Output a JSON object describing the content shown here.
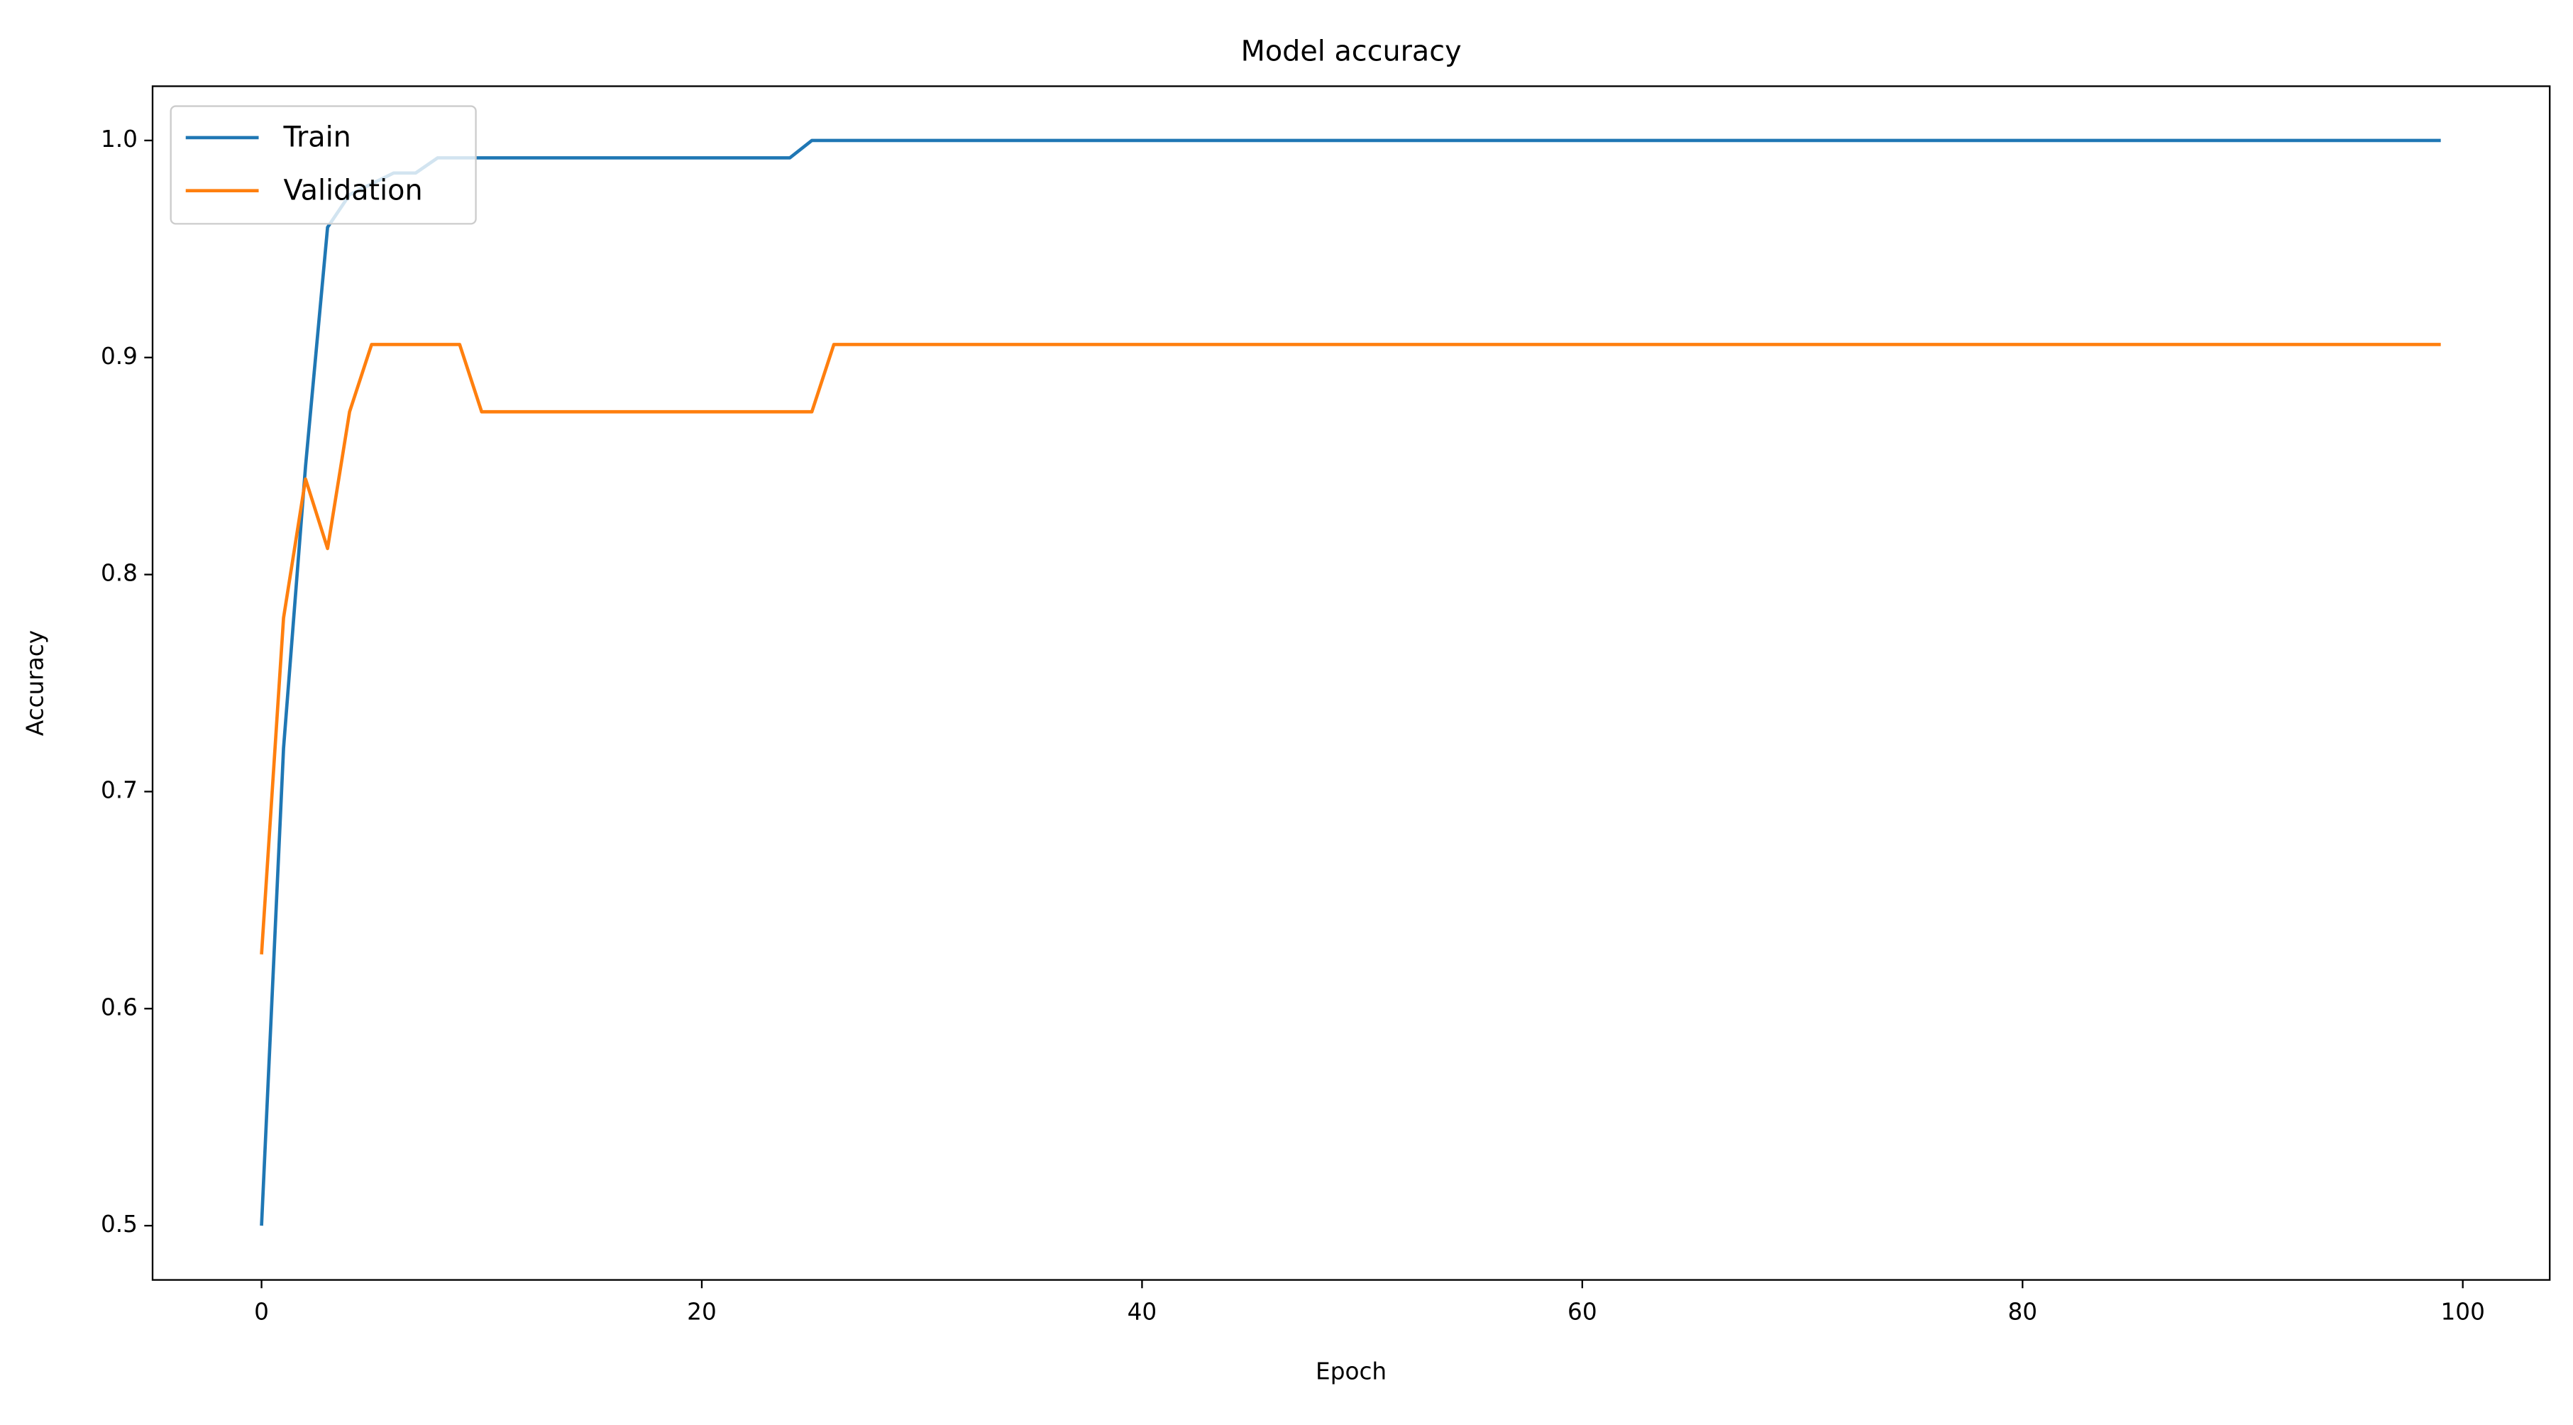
{
  "chart_data": {
    "type": "line",
    "title": "Model accuracy",
    "x_label": "Epoch",
    "y_label": "Accuracy",
    "x": [
      0,
      1,
      2,
      3,
      4,
      5,
      6,
      7,
      8,
      9,
      10,
      11,
      12,
      13,
      14,
      15,
      16,
      17,
      18,
      19,
      20,
      21,
      22,
      23,
      24,
      25,
      26,
      27,
      28,
      29,
      30,
      31,
      32,
      33,
      34,
      35,
      36,
      37,
      38,
      39,
      40,
      41,
      42,
      43,
      44,
      45,
      46,
      47,
      48,
      49,
      50,
      51,
      52,
      53,
      54,
      55,
      56,
      57,
      58,
      59,
      60,
      61,
      62,
      63,
      64,
      65,
      66,
      67,
      68,
      69,
      70,
      71,
      72,
      73,
      74,
      75,
      76,
      77,
      78,
      79,
      80,
      81,
      82,
      83,
      84,
      85,
      86,
      87,
      88,
      89,
      90,
      91,
      92,
      93,
      94,
      95,
      96,
      97,
      98,
      99
    ],
    "series": [
      {
        "name": "Train",
        "color": "#1f77b4",
        "values": [
          0.5,
          0.72,
          0.85,
          0.96,
          0.975,
          0.98,
          0.985,
          0.985,
          0.992,
          0.992,
          0.992,
          0.992,
          0.992,
          0.992,
          0.992,
          0.992,
          0.992,
          0.992,
          0.992,
          0.992,
          0.992,
          0.992,
          0.992,
          0.992,
          0.992,
          1,
          1,
          1,
          1,
          1,
          1,
          1,
          1,
          1,
          1,
          1,
          1,
          1,
          1,
          1,
          1,
          1,
          1,
          1,
          1,
          1,
          1,
          1,
          1,
          1,
          1,
          1,
          1,
          1,
          1,
          1,
          1,
          1,
          1,
          1,
          1,
          1,
          1,
          1,
          1,
          1,
          1,
          1,
          1,
          1,
          1,
          1,
          1,
          1,
          1,
          1,
          1,
          1,
          1,
          1,
          1,
          1,
          1,
          1,
          1,
          1,
          1,
          1,
          1,
          1,
          1,
          1,
          1,
          1,
          1,
          1,
          1,
          1,
          1,
          1
        ]
      },
      {
        "name": "Validation",
        "color": "#ff7f0e",
        "values": [
          0.625,
          0.78,
          0.844,
          0.812,
          0.875,
          0.906,
          0.906,
          0.906,
          0.906,
          0.906,
          0.875,
          0.875,
          0.875,
          0.875,
          0.875,
          0.875,
          0.875,
          0.875,
          0.875,
          0.875,
          0.875,
          0.875,
          0.875,
          0.875,
          0.875,
          0.875,
          0.906,
          0.906,
          0.906,
          0.906,
          0.906,
          0.906,
          0.906,
          0.906,
          0.906,
          0.906,
          0.906,
          0.906,
          0.906,
          0.906,
          0.906,
          0.906,
          0.906,
          0.906,
          0.906,
          0.906,
          0.906,
          0.906,
          0.906,
          0.906,
          0.906,
          0.906,
          0.906,
          0.906,
          0.906,
          0.906,
          0.906,
          0.906,
          0.906,
          0.906,
          0.906,
          0.906,
          0.906,
          0.906,
          0.906,
          0.906,
          0.906,
          0.906,
          0.906,
          0.906,
          0.906,
          0.906,
          0.906,
          0.906,
          0.906,
          0.906,
          0.906,
          0.906,
          0.906,
          0.906,
          0.906,
          0.906,
          0.906,
          0.906,
          0.906,
          0.906,
          0.906,
          0.906,
          0.906,
          0.906,
          0.906,
          0.906,
          0.906,
          0.906,
          0.906,
          0.906,
          0.906,
          0.906,
          0.906,
          0.906
        ]
      }
    ],
    "xlim": [
      -4.95,
      103.95
    ],
    "xticks": [
      0,
      20,
      40,
      60,
      80,
      100
    ],
    "ylim": [
      0.475,
      1.025
    ],
    "yticks": [
      0.5,
      0.6,
      0.7,
      0.8,
      0.9,
      {
        "value": 1,
        "label": "1.0"
      }
    ],
    "grid": false,
    "legend": "upper left"
  }
}
